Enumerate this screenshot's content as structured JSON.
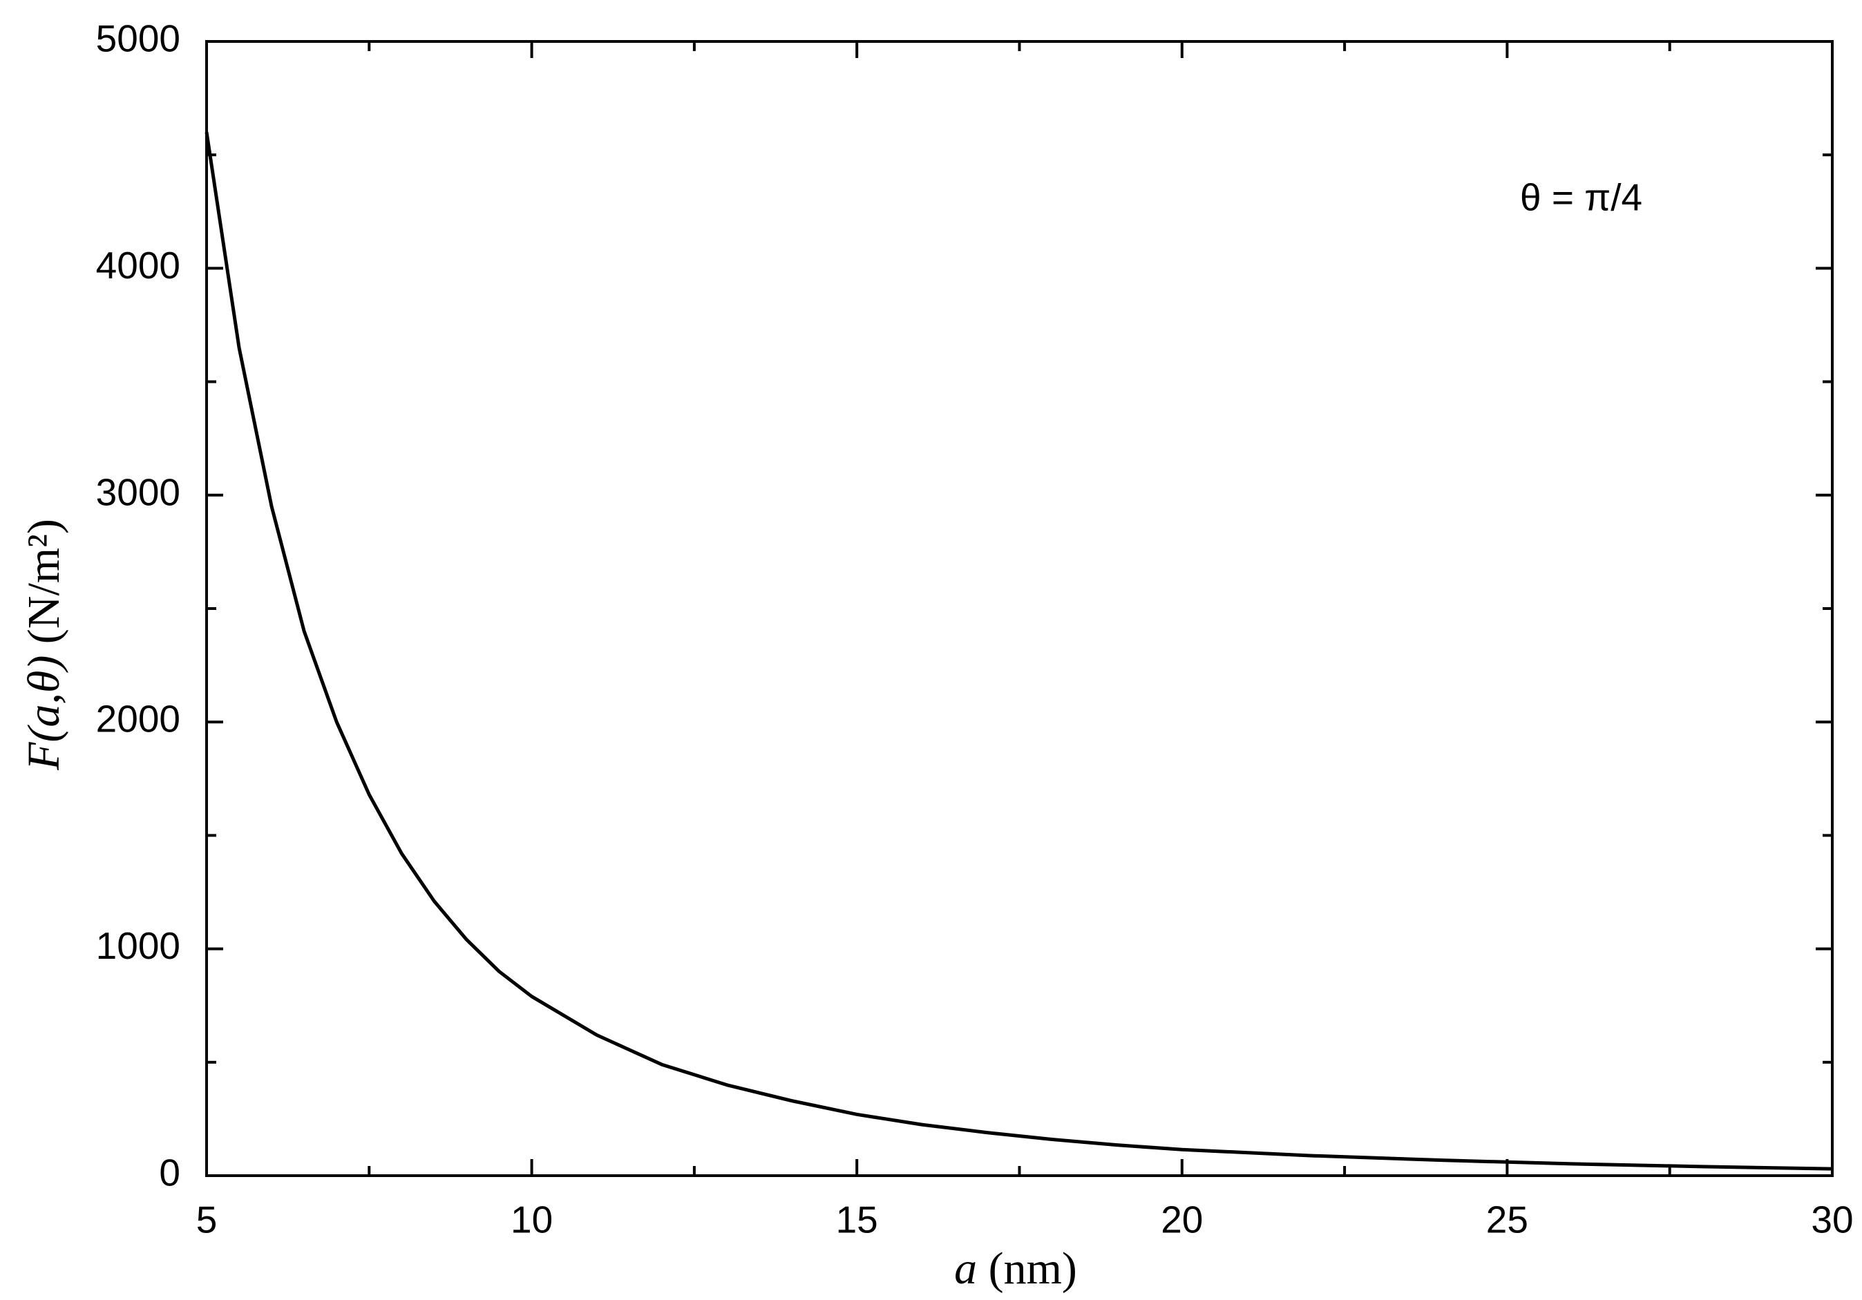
{
  "chart_data": {
    "type": "line",
    "x_label": "a",
    "x_unit": "(nm)",
    "y_label": "F(a,θ)",
    "y_unit": "(N/m²)",
    "annotation": "θ = π/4",
    "x": [
      5,
      5.5,
      6,
      6.5,
      7,
      7.5,
      8,
      8.5,
      9,
      9.5,
      10,
      11,
      12,
      13,
      14,
      15,
      16,
      17,
      18,
      19,
      20,
      22,
      24,
      26,
      28,
      30
    ],
    "series": [
      {
        "color": "#000000",
        "values": [
          4600,
          3650,
          2950,
          2400,
          2000,
          1680,
          1420,
          1210,
          1040,
          900,
          790,
          620,
          490,
          400,
          330,
          270,
          225,
          190,
          160,
          135,
          115,
          88,
          68,
          52,
          40,
          30
        ]
      }
    ],
    "xlim": [
      5,
      30
    ],
    "ylim": [
      0,
      5000
    ],
    "xticks": [
      5,
      10,
      15,
      20,
      25,
      30
    ],
    "yticks": [
      0,
      1000,
      2000,
      3000,
      4000,
      5000
    ],
    "xticks_minor": [
      7.5,
      12.5,
      17.5,
      22.5,
      27.5
    ],
    "yticks_minor": [
      500,
      1500,
      2500,
      3500,
      4500
    ]
  }
}
